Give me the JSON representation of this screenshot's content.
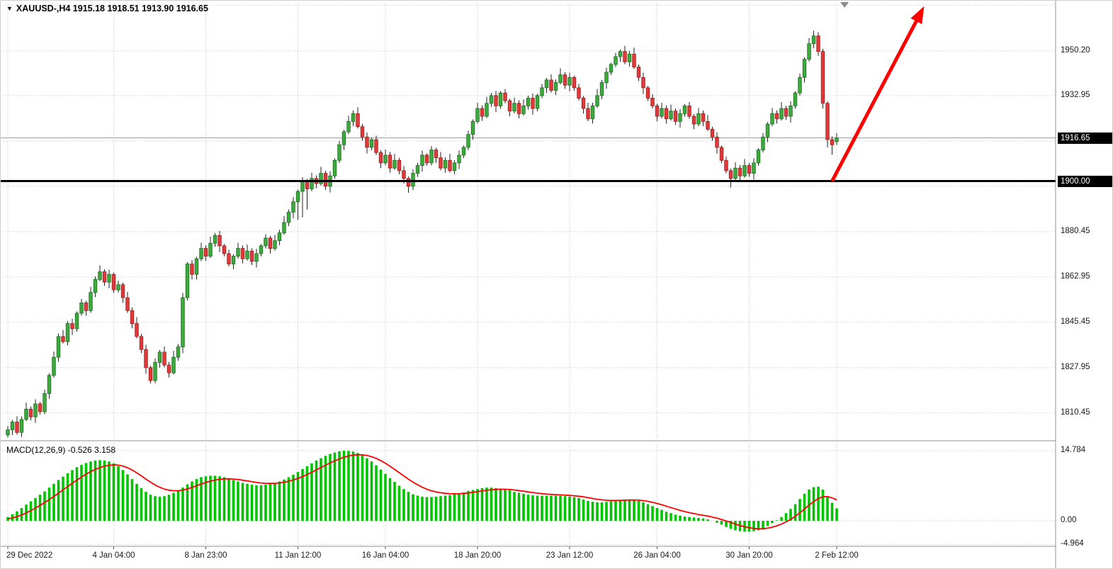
{
  "header": {
    "dropdown_icon": "▼",
    "symbol_info": "XAUUSD-,H4 1915.18 1918.51 1913.90 1916.65"
  },
  "macd_panel": {
    "label": "MACD(12,26,9) -0.526 3.158"
  },
  "price_axis": {
    "labels": [
      {
        "text": "1950.20",
        "price": 1950.2
      },
      {
        "text": "1932.95",
        "price": 1932.95
      },
      {
        "text": "1880.45",
        "price": 1880.45
      },
      {
        "text": "1862.95",
        "price": 1862.95
      },
      {
        "text": "1845.45",
        "price": 1845.45
      },
      {
        "text": "1827.95",
        "price": 1827.95
      },
      {
        "text": "1810.45",
        "price": 1810.45
      }
    ],
    "tags": [
      {
        "text": "1916.65",
        "price": 1916.65
      },
      {
        "text": "1900.00",
        "price": 1900.0
      }
    ]
  },
  "macd_axis": {
    "labels": [
      {
        "text": "14.784",
        "value": 14.784
      },
      {
        "text": "0.00",
        "value": 0
      },
      {
        "text": "-4.964",
        "value": -4.964
      }
    ]
  },
  "time_axis": {
    "labels": [
      {
        "text": "29 Dec 2022",
        "index": 0,
        "align": "left"
      },
      {
        "text": "4 Jan 04:00",
        "index": 23,
        "align": "center"
      },
      {
        "text": "8 Jan 23:00",
        "index": 43,
        "align": "center"
      },
      {
        "text": "11 Jan 12:00",
        "index": 63,
        "align": "center"
      },
      {
        "text": "16 Jan 04:00",
        "index": 82,
        "align": "center"
      },
      {
        "text": "18 Jan 20:00",
        "index": 102,
        "align": "center"
      },
      {
        "text": "23 Jan 12:00",
        "index": 122,
        "align": "center"
      },
      {
        "text": "26 Jan 04:00",
        "index": 141,
        "align": "center"
      },
      {
        "text": "30 Jan 20:00",
        "index": 161,
        "align": "center"
      },
      {
        "text": "2 Feb 12:00",
        "index": 180,
        "align": "center"
      }
    ]
  },
  "colors": {
    "bull_fill": "#3caa3c",
    "bull_stroke": "#1e6b1e",
    "bear_fill": "#e23a3a",
    "bear_stroke": "#9c1c1c",
    "wick": "#222222",
    "macd_bar": "#00c400",
    "macd_signal": "#ff0000",
    "grid": "#c4c4c4",
    "axis_text": "#1a1a1a",
    "tag_bg": "#000000",
    "tag_text": "#ffffff",
    "arrow": "#ff0000",
    "support": "#000000",
    "current_price_line": "#9a9a9a"
  },
  "chart_data": {
    "type": "candlestick",
    "symbol": "XAUUSD-",
    "timeframe": "H4",
    "last_ohlc": {
      "open": 1915.18,
      "high": 1918.51,
      "low": 1913.9,
      "close": 1916.65
    },
    "ylim": [
      1800.6,
      1968.5
    ],
    "grid": "dotted",
    "price_gridlines": [
      1967.95,
      1950.2,
      1932.95,
      1915.45,
      1897.95,
      1880.45,
      1862.95,
      1845.45,
      1827.95,
      1810.45
    ],
    "time_gridline_indices": [
      0,
      23,
      43,
      63,
      82,
      102,
      122,
      141,
      161,
      180
    ],
    "candles": [
      [
        1802,
        1805.5,
        1801,
        1804
      ],
      [
        1804,
        1807.8,
        1802,
        1807
      ],
      [
        1807,
        1809.2,
        1802.1,
        1803
      ],
      [
        1803,
        1809.2,
        1801.2,
        1808
      ],
      [
        1808,
        1814.5,
        1807.3,
        1812
      ],
      [
        1812,
        1813,
        1807.6,
        1809
      ],
      [
        1809,
        1815.8,
        1806.6,
        1814
      ],
      [
        1814,
        1814.7,
        1809.9,
        1811
      ],
      [
        1811,
        1819.5,
        1810,
        1818
      ],
      [
        1818,
        1825.8,
        1816,
        1825
      ],
      [
        1825,
        1834.2,
        1824.1,
        1832
      ],
      [
        1832,
        1841.2,
        1830.2,
        1840
      ],
      [
        1840,
        1842.5,
        1837.3,
        1838
      ],
      [
        1838,
        1846,
        1836.6,
        1845
      ],
      [
        1845,
        1846.8,
        1840.6,
        1843
      ],
      [
        1843,
        1849.7,
        1841.9,
        1849
      ],
      [
        1849,
        1854.5,
        1848,
        1853
      ],
      [
        1853,
        1853.8,
        1848,
        1850
      ],
      [
        1850,
        1859.2,
        1849.1,
        1857
      ],
      [
        1857,
        1863.2,
        1855.2,
        1862
      ],
      [
        1862,
        1867.5,
        1861.3,
        1865
      ],
      [
        1865,
        1866,
        1859.6,
        1861
      ],
      [
        1861,
        1865.8,
        1858.6,
        1864
      ],
      [
        1864,
        1864.7,
        1856.9,
        1858
      ],
      [
        1858,
        1861.5,
        1857,
        1860
      ],
      [
        1860,
        1860.8,
        1853,
        1855
      ],
      [
        1855,
        1857.2,
        1849.1,
        1850
      ],
      [
        1850,
        1851.2,
        1843.2,
        1845
      ],
      [
        1845,
        1847.5,
        1839.3,
        1840
      ],
      [
        1840,
        1841,
        1833.6,
        1835
      ],
      [
        1835,
        1836.8,
        1825.6,
        1828
      ],
      [
        1828,
        1828.7,
        1821.9,
        1823
      ],
      [
        1823,
        1831.5,
        1822,
        1830
      ],
      [
        1830,
        1834.8,
        1828,
        1834
      ],
      [
        1834,
        1836.2,
        1828.1,
        1829
      ],
      [
        1829,
        1830.2,
        1824.2,
        1826
      ],
      [
        1826,
        1834.5,
        1825.3,
        1832
      ],
      [
        1832,
        1837,
        1830.6,
        1836
      ],
      [
        1836,
        1856.8,
        1833.6,
        1855
      ],
      [
        1855,
        1868.7,
        1853.9,
        1868
      ],
      [
        1868,
        1869.5,
        1862,
        1864
      ],
      [
        1864,
        1870.8,
        1862,
        1870
      ],
      [
        1870,
        1876.2,
        1869.1,
        1874
      ],
      [
        1874,
        1875.2,
        1869.2,
        1871
      ],
      [
        1871,
        1878.5,
        1870.3,
        1876
      ],
      [
        1876,
        1880,
        1874.6,
        1879
      ],
      [
        1879,
        1880.8,
        1872.6,
        1875
      ],
      [
        1875,
        1875.7,
        1870.9,
        1872
      ],
      [
        1872,
        1873.5,
        1867,
        1868
      ],
      [
        1868,
        1871.8,
        1866,
        1871
      ],
      [
        1871,
        1876.2,
        1870.1,
        1874
      ],
      [
        1874,
        1875.2,
        1868.2,
        1870
      ],
      [
        1870,
        1875.5,
        1869.3,
        1873
      ],
      [
        1873,
        1874,
        1867.6,
        1869
      ],
      [
        1869,
        1873.8,
        1866.6,
        1872
      ],
      [
        1872,
        1875.7,
        1870.9,
        1875
      ],
      [
        1875,
        1879.5,
        1874,
        1878
      ],
      [
        1878,
        1878.8,
        1872,
        1874
      ],
      [
        1874,
        1879.2,
        1873.1,
        1877
      ],
      [
        1877,
        1881.2,
        1875.2,
        1880
      ],
      [
        1880,
        1886.5,
        1879.3,
        1884
      ],
      [
        1884,
        1889,
        1882.6,
        1888
      ],
      [
        1888,
        1893.8,
        1885.6,
        1892
      ],
      [
        1892,
        1896.7,
        1885,
        1896
      ],
      [
        1896,
        1901.5,
        1886,
        1900
      ],
      [
        1900,
        1900.8,
        1889,
        1897
      ],
      [
        1897,
        1903.2,
        1896.1,
        1901
      ],
      [
        1901,
        1902.2,
        1897.2,
        1899
      ],
      [
        1899,
        1905.5,
        1898.3,
        1903
      ],
      [
        1903,
        1904,
        1896.6,
        1898
      ],
      [
        1898,
        1903.8,
        1895.6,
        1902
      ],
      [
        1902,
        1908.7,
        1900.9,
        1908
      ],
      [
        1908,
        1915.5,
        1907,
        1914
      ],
      [
        1914,
        1919.8,
        1912,
        1919
      ],
      [
        1919,
        1925.2,
        1918.1,
        1923
      ],
      [
        1923,
        1927.2,
        1921.2,
        1926
      ],
      [
        1926,
        1928.5,
        1920.3,
        1921
      ],
      [
        1921,
        1922,
        1915.6,
        1917
      ],
      [
        1917,
        1918.8,
        1910.6,
        1913
      ],
      [
        1913,
        1916.7,
        1911.9,
        1916
      ],
      [
        1916,
        1917.5,
        1910,
        1911
      ],
      [
        1911,
        1911.8,
        1905,
        1907
      ],
      [
        1907,
        1912.2,
        1906.1,
        1910
      ],
      [
        1910,
        1911.2,
        1903.2,
        1905
      ],
      [
        1905,
        1910.5,
        1904.3,
        1908
      ],
      [
        1908,
        1909,
        1902.6,
        1904
      ],
      [
        1904,
        1905.8,
        1899,
        1901
      ],
      [
        1901,
        1901.7,
        1895.5,
        1898
      ],
      [
        1898,
        1904.5,
        1896.5,
        1903
      ],
      [
        1903,
        1907,
        1901.6,
        1906
      ],
      [
        1906,
        1911.8,
        1903.6,
        1910
      ],
      [
        1910,
        1910.7,
        1905.9,
        1907
      ],
      [
        1907,
        1913.5,
        1906,
        1912
      ],
      [
        1912,
        1912.8,
        1907,
        1909
      ],
      [
        1909,
        1911.2,
        1904.1,
        1905
      ],
      [
        1905,
        1909.2,
        1903.2,
        1908
      ],
      [
        1908,
        1910.5,
        1903.3,
        1904
      ],
      [
        1904,
        1908,
        1902.6,
        1907
      ],
      [
        1907,
        1911.8,
        1904.6,
        1910
      ],
      [
        1910,
        1913.7,
        1908.9,
        1913
      ],
      [
        1913,
        1919.5,
        1912,
        1918
      ],
      [
        1918,
        1923.8,
        1916,
        1923
      ],
      [
        1923,
        1930.2,
        1922.1,
        1928
      ],
      [
        1928,
        1929.2,
        1923.2,
        1925
      ],
      [
        1925,
        1932.5,
        1924.3,
        1930
      ],
      [
        1930,
        1934,
        1928.6,
        1933
      ],
      [
        1933,
        1934.8,
        1926.6,
        1929
      ],
      [
        1929,
        1934.7,
        1927.9,
        1934
      ],
      [
        1934,
        1935.5,
        1930,
        1931
      ],
      [
        1931,
        1931.8,
        1925,
        1927
      ],
      [
        1927,
        1932.2,
        1926.1,
        1930
      ],
      [
        1930,
        1931.2,
        1924.2,
        1926
      ],
      [
        1926,
        1931.5,
        1925.3,
        1929
      ],
      [
        1929,
        1933,
        1927.6,
        1932
      ],
      [
        1932,
        1933.8,
        1925.6,
        1928
      ],
      [
        1928,
        1933.7,
        1926.9,
        1933
      ],
      [
        1933,
        1937.5,
        1932,
        1936
      ],
      [
        1936,
        1939.8,
        1934,
        1939
      ],
      [
        1939,
        1941.2,
        1934.1,
        1935
      ],
      [
        1935,
        1939.2,
        1933.2,
        1938
      ],
      [
        1938,
        1943.5,
        1937.3,
        1941
      ],
      [
        1941,
        1942,
        1935.6,
        1937
      ],
      [
        1937,
        1941.8,
        1934.6,
        1940
      ],
      [
        1940,
        1940.7,
        1934.9,
        1936
      ],
      [
        1936,
        1937.5,
        1931,
        1932
      ],
      [
        1932,
        1932.8,
        1926,
        1928
      ],
      [
        1928,
        1930.2,
        1923.1,
        1924
      ],
      [
        1924,
        1930.2,
        1922.2,
        1929
      ],
      [
        1929,
        1935.5,
        1928.3,
        1933
      ],
      [
        1933,
        1939,
        1931.6,
        1938
      ],
      [
        1938,
        1943.8,
        1935.6,
        1942
      ],
      [
        1942,
        1945.7,
        1940.9,
        1945
      ],
      [
        1945,
        1949.5,
        1944,
        1948
      ],
      [
        1948,
        1950.8,
        1946,
        1950
      ],
      [
        1950,
        1952.2,
        1945.1,
        1946
      ],
      [
        1946,
        1950.2,
        1944.2,
        1949
      ],
      [
        1949,
        1951.5,
        1943.3,
        1944
      ],
      [
        1944,
        1945,
        1938.6,
        1940
      ],
      [
        1940,
        1941.8,
        1933.6,
        1936
      ],
      [
        1936,
        1936.7,
        1930.9,
        1932
      ],
      [
        1932,
        1933.5,
        1928,
        1929
      ],
      [
        1929,
        1929.8,
        1923,
        1925
      ],
      [
        1925,
        1930.2,
        1924.1,
        1928
      ],
      [
        1928,
        1929.2,
        1922.2,
        1924
      ],
      [
        1924,
        1929.5,
        1923.3,
        1927
      ],
      [
        1927,
        1928,
        1921.6,
        1923
      ],
      [
        1923,
        1927.8,
        1920.6,
        1926
      ],
      [
        1926,
        1929.7,
        1924.9,
        1929
      ],
      [
        1929,
        1930.5,
        1924,
        1925
      ],
      [
        1925,
        1925.8,
        1920,
        1922
      ],
      [
        1922,
        1928.2,
        1921.1,
        1926
      ],
      [
        1926,
        1927.2,
        1921.2,
        1923
      ],
      [
        1923,
        1925.5,
        1919.3,
        1920
      ],
      [
        1920,
        1921,
        1915.6,
        1917
      ],
      [
        1917,
        1918.8,
        1910.6,
        1913
      ],
      [
        1913,
        1913.7,
        1906.9,
        1908
      ],
      [
        1908,
        1909.5,
        1903,
        1904
      ],
      [
        1904,
        1904.8,
        1897.5,
        1901
      ],
      [
        1901,
        1907.2,
        1900.1,
        1905
      ],
      [
        1905,
        1906.2,
        1900.2,
        1902
      ],
      [
        1902,
        1908.5,
        1901.3,
        1906
      ],
      [
        1906,
        1907,
        1901.6,
        1903
      ],
      [
        1903,
        1908.8,
        1900.6,
        1907
      ],
      [
        1907,
        1912.7,
        1905.9,
        1912
      ],
      [
        1912,
        1918.5,
        1911,
        1917
      ],
      [
        1917,
        1922.8,
        1915,
        1922
      ],
      [
        1922,
        1928.2,
        1921.1,
        1926
      ],
      [
        1926,
        1927.2,
        1922.2,
        1924
      ],
      [
        1924,
        1930.5,
        1923.3,
        1928
      ],
      [
        1928,
        1929,
        1923.6,
        1925
      ],
      [
        1925,
        1930.8,
        1922.6,
        1929
      ],
      [
        1929,
        1934.7,
        1927.9,
        1934
      ],
      [
        1934,
        1941.5,
        1933,
        1940
      ],
      [
        1940,
        1947.8,
        1938,
        1947
      ],
      [
        1947,
        1955.2,
        1946.1,
        1953
      ],
      [
        1953,
        1958,
        1951.2,
        1956
      ],
      [
        1956,
        1957.5,
        1948.3,
        1950
      ],
      [
        1950,
        1951,
        1928,
        1930
      ],
      [
        1930,
        1930.8,
        1913,
        1916
      ],
      [
        1916,
        1917.2,
        1910.2,
        1914
      ],
      [
        1915.18,
        1918.51,
        1913.9,
        1916.65
      ]
    ],
    "indicator": {
      "type": "macd_histogram",
      "name": "MACD(12,26,9)",
      "values_label": "-0.526 3.158",
      "ylim": [
        -5.08,
        16.43
      ],
      "axis_values": [
        14.784,
        0,
        -4.964
      ],
      "signal_ema_period": 9,
      "histogram": [
        0.8,
        1.4,
        2.0,
        2.7,
        3.4,
        4.1,
        4.8,
        5.5,
        6.2,
        7.0,
        7.8,
        8.6,
        9.3,
        10.0,
        10.7,
        11.3,
        11.8,
        12.2,
        12.5,
        12.7,
        12.8,
        12.7,
        12.5,
        12.1,
        11.5,
        10.7,
        9.8,
        8.8,
        7.8,
        6.9,
        6.1,
        5.5,
        5.2,
        5.1,
        5.2,
        5.5,
        5.9,
        6.4,
        7.0,
        7.7,
        8.3,
        8.8,
        9.2,
        9.4,
        9.5,
        9.5,
        9.4,
        9.2,
        8.9,
        8.6,
        8.3,
        8.0,
        7.8,
        7.6,
        7.5,
        7.5,
        7.6,
        7.8,
        8.0,
        8.3,
        8.7,
        9.2,
        9.7,
        10.3,
        10.9,
        11.5,
        12.1,
        12.7,
        13.2,
        13.7,
        14.1,
        14.4,
        14.65,
        14.784,
        14.75,
        14.6,
        14.3,
        13.8,
        13.2,
        12.5,
        11.7,
        10.8,
        9.9,
        9.0,
        8.2,
        7.4,
        6.7,
        6.1,
        5.6,
        5.3,
        5.1,
        5.0,
        5.0,
        5.1,
        5.2,
        5.3,
        5.4,
        5.6,
        5.8,
        6.0,
        6.3,
        6.5,
        6.7,
        6.9,
        7.0,
        7.0,
        6.9,
        6.8,
        6.6,
        6.4,
        6.1,
        5.9,
        5.7,
        5.5,
        5.4,
        5.3,
        5.3,
        5.3,
        5.3,
        5.3,
        5.3,
        5.2,
        5.1,
        5.0,
        4.8,
        4.5,
        4.2,
        4.0,
        3.9,
        3.9,
        4.0,
        4.1,
        4.3,
        4.4,
        4.5,
        4.5,
        4.4,
        4.2,
        3.9,
        3.5,
        3.1,
        2.7,
        2.3,
        1.9,
        1.6,
        1.3,
        1.1,
        0.9,
        0.8,
        0.7,
        0.6,
        0.5,
        0.3,
        0.0,
        -0.4,
        -0.8,
        -1.3,
        -1.7,
        -2.0,
        -2.2,
        -2.3,
        -2.3,
        -2.2,
        -2.0,
        -1.6,
        -1.1,
        -0.5,
        0.1,
        0.8,
        1.6,
        2.5,
        3.5,
        4.6,
        5.7,
        6.6,
        7.1,
        7.2,
        6.6,
        5.2,
        3.8,
        2.632
      ]
    },
    "annotations": {
      "support_line": {
        "price": 1900.0,
        "color": "#000000",
        "width": 3
      },
      "current_price_line": {
        "price": 1916.65,
        "color": "#9a9a9a"
      },
      "arrow": {
        "from_index": 179,
        "from_price": 1900,
        "to_index": 199,
        "to_price": 1967.5,
        "color": "#ff0000"
      },
      "scroll_marker_index": 181.7
    }
  }
}
